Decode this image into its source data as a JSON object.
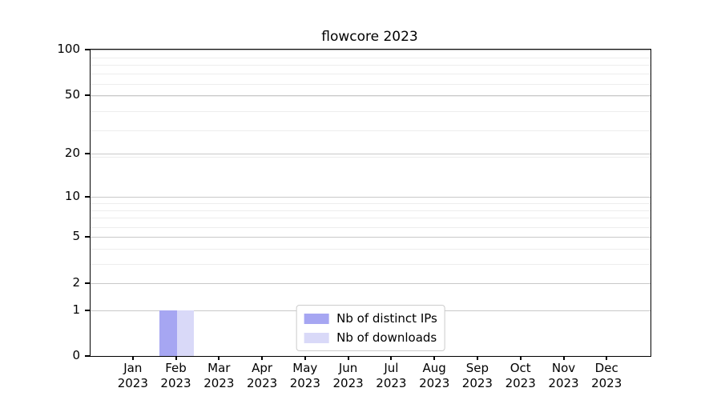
{
  "chart_data": {
    "type": "bar",
    "title": "flowcore 2023",
    "categories": [
      "Jan\n2023",
      "Feb\n2023",
      "Mar\n2023",
      "Apr\n2023",
      "May\n2023",
      "Jun\n2023",
      "Jul\n2023",
      "Aug\n2023",
      "Sep\n2023",
      "Oct\n2023",
      "Nov\n2023",
      "Dec\n2023"
    ],
    "series": [
      {
        "name": "Nb of distinct IPs",
        "color": "#a6a6f2",
        "values": [
          0,
          1,
          0,
          0,
          0,
          0,
          0,
          0,
          0,
          0,
          0,
          0
        ]
      },
      {
        "name": "Nb of downloads",
        "color": "#d9d9f8",
        "values": [
          0,
          1,
          0,
          0,
          0,
          0,
          0,
          0,
          0,
          0,
          0,
          0
        ]
      }
    ],
    "xlabel": "",
    "ylabel": "",
    "y_scale": "log1p",
    "y_ticks": [
      0,
      1,
      2,
      5,
      10,
      20,
      50,
      100
    ],
    "ylim": [
      0,
      100
    ],
    "legend_position": "lower center",
    "grid": "both",
    "style": {
      "grid_major_color": "#c9c9c9",
      "grid_minor_color": "#ededed",
      "axis_color": "#000000",
      "background": "#ffffff"
    }
  }
}
